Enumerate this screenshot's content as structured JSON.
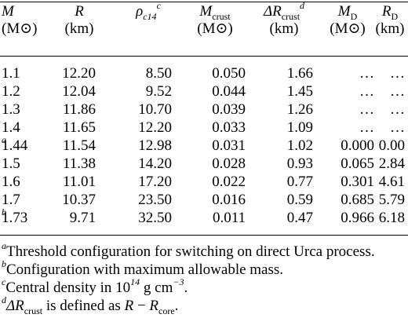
{
  "table": {
    "headers": [
      {
        "symbol": "M",
        "sub": "",
        "sup": "",
        "unit": "(M⊙)"
      },
      {
        "symbol": "R",
        "sub": "",
        "sup": "",
        "unit": "(km)"
      },
      {
        "symbol": "ρ",
        "sub": "c14",
        "sup": "c",
        "unit": ""
      },
      {
        "symbol": "M",
        "sub": "crust",
        "sup": "",
        "unit": "(M⊙)"
      },
      {
        "symbol": "ΔR",
        "sub": "crust",
        "sup": "d",
        "unit": "(km)"
      },
      {
        "symbol": "M",
        "sub": "D",
        "sup": "",
        "unit": "(M⊙)"
      },
      {
        "symbol": "R",
        "sub": "D",
        "sup": "",
        "unit": "(km)"
      }
    ],
    "rows": [
      {
        "mass": "1.1",
        "mark": "",
        "R": "12.20",
        "rho": "8.50",
        "Mcrust": "0.050",
        "dR": "1.66",
        "MD": "…",
        "RD": "…"
      },
      {
        "mass": "1.2",
        "mark": "",
        "R": "12.04",
        "rho": "9.52",
        "Mcrust": "0.044",
        "dR": "1.45",
        "MD": "…",
        "RD": "…"
      },
      {
        "mass": "1.3",
        "mark": "",
        "R": "11.86",
        "rho": "10.70",
        "Mcrust": "0.039",
        "dR": "1.26",
        "MD": "…",
        "RD": "…"
      },
      {
        "mass": "1.4",
        "mark": "",
        "R": "11.65",
        "rho": "12.20",
        "Mcrust": "0.033",
        "dR": "1.09",
        "MD": "…",
        "RD": "…"
      },
      {
        "mass": "1.44",
        "mark": "a",
        "R": "11.54",
        "rho": "12.98",
        "Mcrust": "0.031",
        "dR": "1.02",
        "MD": "0.000",
        "RD": "0.00"
      },
      {
        "mass": "1.5",
        "mark": "",
        "R": "11.38",
        "rho": "14.20",
        "Mcrust": "0.028",
        "dR": "0.93",
        "MD": "0.065",
        "RD": "2.84"
      },
      {
        "mass": "1.6",
        "mark": "",
        "R": "11.01",
        "rho": "17.20",
        "Mcrust": "0.022",
        "dR": "0.77",
        "MD": "0.301",
        "RD": "4.61"
      },
      {
        "mass": "1.7",
        "mark": "",
        "R": "10.37",
        "rho": "23.50",
        "Mcrust": "0.016",
        "dR": "0.59",
        "MD": "0.685",
        "RD": "5.79"
      },
      {
        "mass": "1.73",
        "mark": "b",
        "R": "9.71",
        "rho": "32.50",
        "Mcrust": "0.011",
        "dR": "0.47",
        "MD": "0.966",
        "RD": "6.18"
      }
    ]
  },
  "footnotes": [
    {
      "mark": "a",
      "text": "Threshold configuration for switching on direct Urca process."
    },
    {
      "mark": "b",
      "text": "Configuration with maximum allowable mass."
    },
    {
      "mark": "c",
      "pre": "Central density in 10",
      "exp": "14",
      "mid": " g cm",
      "exp2": "−3",
      "post": "."
    },
    {
      "mark": "d",
      "sym": "ΔR",
      "sub": "crust",
      "mid": " is defined as ",
      "sym2": "R",
      "minus": " − ",
      "sym3": "R",
      "sub3": "core",
      "post": "."
    }
  ]
}
